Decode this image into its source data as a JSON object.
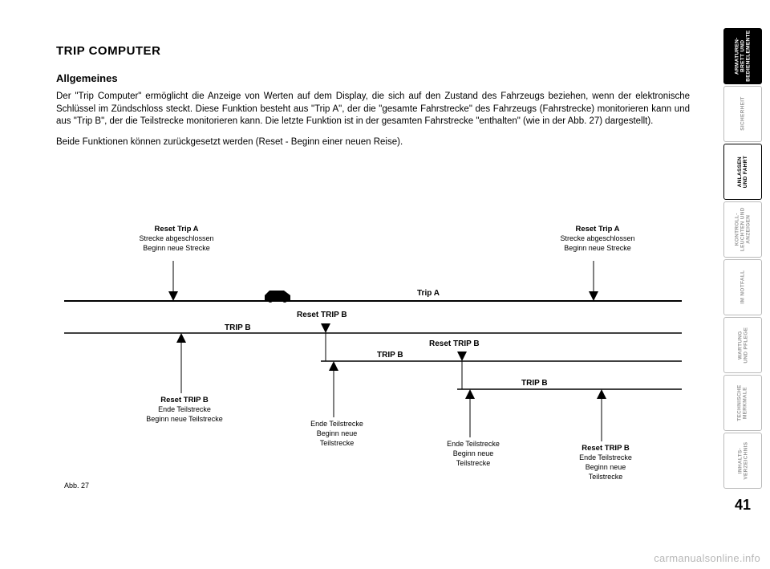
{
  "title": "TRIP COMPUTER",
  "subtitle": "Allgemeines",
  "para1": "Der \"Trip Computer\" ermöglicht die Anzeige von Werten auf dem Display, die sich auf den Zustand des Fahrzeugs beziehen, wenn der elektronische Schlüssel im Zündschloss steckt. Diese Funktion besteht aus \"Trip A\", der die \"gesamte Fahrstrecke\" des Fahrzeugs (Fahrstrecke) monitorieren kann und aus \"Trip B\", der die Teilstrecke monitorieren kann. Die letzte Funktion ist in der gesamten Fahrstrecke \"enthalten\" (wie in der Abb. 27) dargestellt).",
  "para2": "Beide Funktionen können zurückgesetzt werden (Reset - Beginn einer neuen Reise).",
  "diagram": {
    "tripA_label": "Trip A",
    "tripB_label": "TRIP B",
    "resetTripB_label": "Reset TRIP B",
    "topA1_line1": "Reset Trip A",
    "topA1_line2": "Strecke abgeschlossen",
    "topA1_line3": "Beginn neue Strecke",
    "topA2_line1": "Reset Trip A",
    "topA2_line2": "Strecke abgeschlossen",
    "topA2_line3": "Beginn neue Strecke",
    "b1_line1": "Reset TRIP B",
    "b1_line2": "Ende Teilstrecke",
    "b1_line3": "Beginn neue Teilstrecke",
    "b2_line1": "Ende Teilstrecke",
    "b2_line2": "Beginn neue",
    "b2_line3": "Teilstrecke",
    "b3_line1": "Ende Teilstrecke",
    "b3_line2": "Beginn neue",
    "b3_line3": "Teilstrecke",
    "b4_line1": "Reset TRIP B",
    "b4_line2": "Ende Teilstrecke",
    "b4_line3": "Beginn neue",
    "b4_line4": "Teilstrecke",
    "fig_caption": "Abb. 27",
    "colors": {
      "line": "#000000",
      "bg": "#ffffff"
    }
  },
  "tabs": {
    "t1": "ARMATUREN-\nBRETT UND\nBEDIENELEMENTE",
    "t2": "SICHERHEIT",
    "t3": "ANLASSEN\nUND FAHRT",
    "t4": "KONTROLL-\nLEUCHTEN UND\nANZEIGEN",
    "t5": "IM NOTFALL",
    "t6": "WARTUNG\nUND PFLEGE",
    "t7": "TECHNISCHE\nMERKMALE",
    "t8": "INHALTS-\nVERZEICHNIS"
  },
  "page_number": "41",
  "watermark": "carmanualsonline.info"
}
